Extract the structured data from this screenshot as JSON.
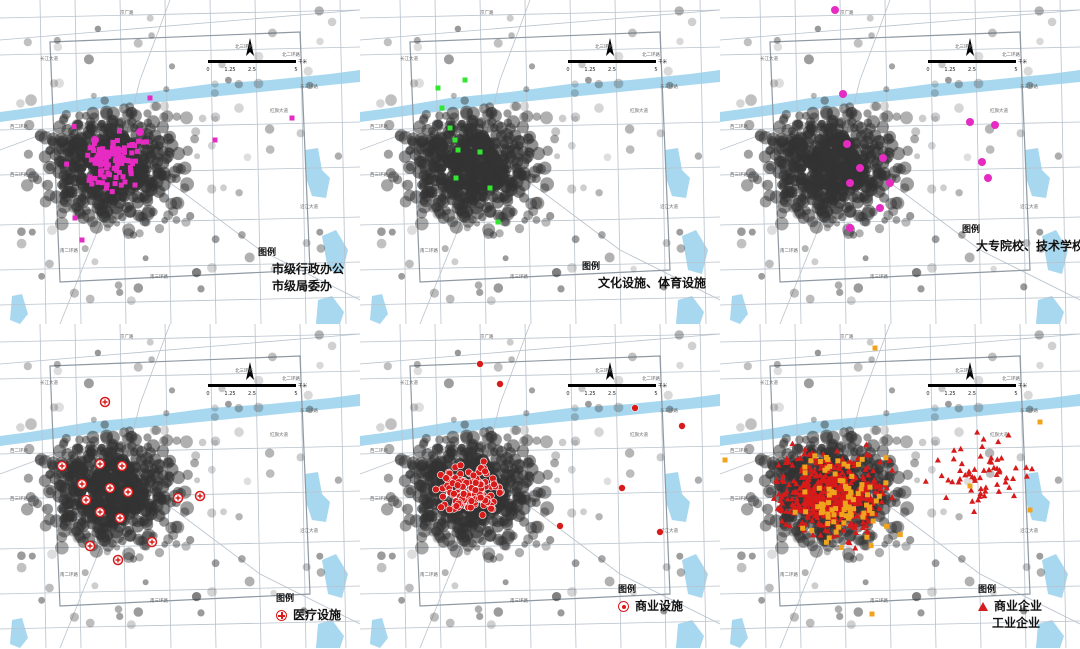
{
  "legend_title": "图例",
  "colors": {
    "density": "#333333",
    "road": "#b8c2cc",
    "road_major": "#8e99a3",
    "water": "#a7d8ef",
    "magenta": "#e62bc3",
    "green": "#32e632",
    "red": "#d71a1a",
    "orange": "#f0a41e"
  },
  "scalebar": {
    "ticks": [
      "0",
      "1.25",
      "2.5",
      "5"
    ],
    "unit": "千米"
  },
  "road_labels": [
    "北三环路",
    "北二环路",
    "红旗大道",
    "东三环路",
    "南三环路",
    "南二环路",
    "长江大道",
    "西二环路",
    "西三环路",
    "京广路",
    "沿江大道"
  ],
  "panels": [
    {
      "id": "admin",
      "legend": [
        {
          "symbol": "circle",
          "color": "#e62bc3",
          "label": "市级行政办公"
        },
        {
          "symbol": "square",
          "color": "#e62bc3",
          "label": "市级局委办"
        }
      ]
    },
    {
      "id": "culture",
      "legend": [
        {
          "symbol": "square-big",
          "color": "#32e632",
          "label": "文化设施、体育设施"
        }
      ]
    },
    {
      "id": "college",
      "legend": [
        {
          "symbol": "circle",
          "color": "#e62bc3",
          "label": "大专院校、技术学校"
        }
      ]
    },
    {
      "id": "medical",
      "legend": [
        {
          "symbol": "cross",
          "color": "#d71a1a",
          "label": "医疗设施"
        }
      ]
    },
    {
      "id": "commerce",
      "legend": [
        {
          "symbol": "ring",
          "color": "#d71a1a",
          "label": "商业设施"
        }
      ]
    },
    {
      "id": "enterprise",
      "legend": [
        {
          "symbol": "triangle",
          "color": "#d71a1a",
          "label": "商业企业"
        },
        {
          "symbol": "square",
          "color": "#f0a41e",
          "label": "工业企业"
        }
      ]
    }
  ]
}
